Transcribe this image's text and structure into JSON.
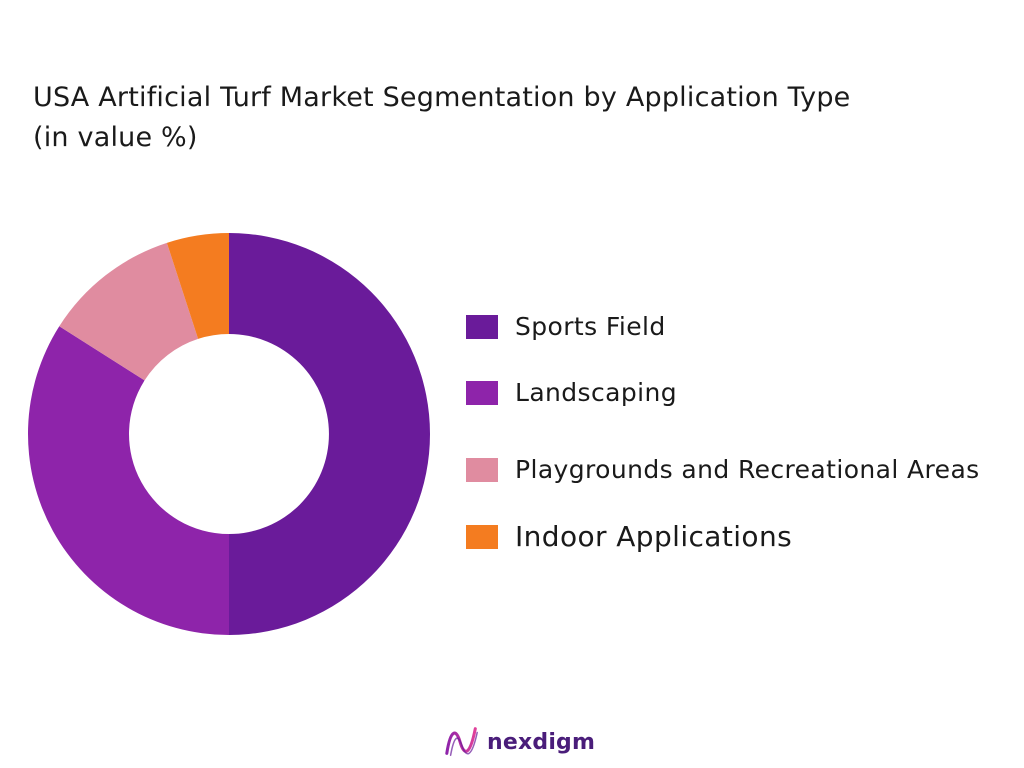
{
  "chart_data": {
    "type": "pie",
    "title": [
      "USA Artificial Turf Market Segmentation by Application Type",
      "(in value %)"
    ],
    "categories": [
      "Sports Field",
      "Landscaping",
      "Playgrounds and Recreational Areas",
      "Indoor Applications"
    ],
    "values": [
      50,
      34,
      11,
      5
    ],
    "colors": [
      "#6a1b9a",
      "#8e24aa",
      "#e08ca0",
      "#f47c20"
    ],
    "donut": true,
    "legend_position": "right"
  },
  "branding": {
    "logo_text": "nexdigm",
    "logo_color": "#4a1d7a",
    "logo_icon": "nexdigm-wave-icon"
  }
}
